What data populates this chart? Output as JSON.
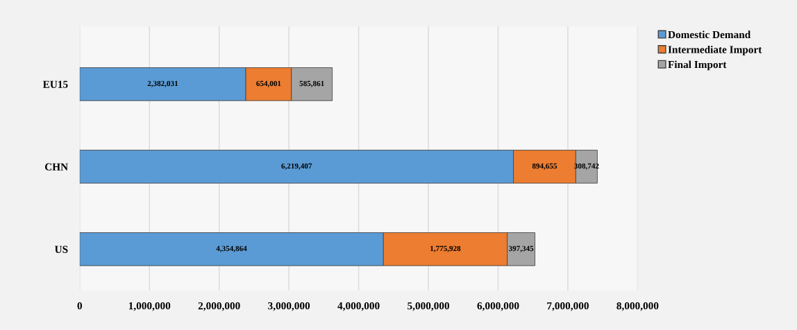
{
  "chart_data": {
    "type": "bar",
    "orientation": "horizontal",
    "stacked": true,
    "categories": [
      "EU15",
      "CHN",
      "US"
    ],
    "series": [
      {
        "name": "Domestic Demand",
        "color": "#5b9bd5",
        "values": [
          2382031,
          6219407,
          4354864
        ],
        "value_labels": [
          "2,382,031",
          "6,219,407",
          "4,354,864"
        ]
      },
      {
        "name": "Intermediate Import",
        "color": "#ed7d31",
        "values": [
          654001,
          894655,
          1775928
        ],
        "value_labels": [
          "654,001",
          "894,655",
          "1,775,928"
        ]
      },
      {
        "name": "Final Import",
        "color": "#a5a5a5",
        "values": [
          585861,
          308742,
          397345
        ],
        "value_labels": [
          "585,861",
          "308,742",
          "397,345"
        ]
      }
    ],
    "xlim": [
      0,
      8000000
    ],
    "xticks": [
      {
        "value": 0,
        "label": "0"
      },
      {
        "value": 1000000,
        "label": "1,000,000"
      },
      {
        "value": 2000000,
        "label": "2,000,000"
      },
      {
        "value": 3000000,
        "label": "3,000,000"
      },
      {
        "value": 4000000,
        "label": "4,000,000"
      },
      {
        "value": 5000000,
        "label": "5,000,000"
      },
      {
        "value": 6000000,
        "label": "6,000,000"
      },
      {
        "value": 7000000,
        "label": "7,000,000"
      },
      {
        "value": 8000000,
        "label": "8,000,000"
      }
    ],
    "grid": "x",
    "legend": "top right"
  }
}
